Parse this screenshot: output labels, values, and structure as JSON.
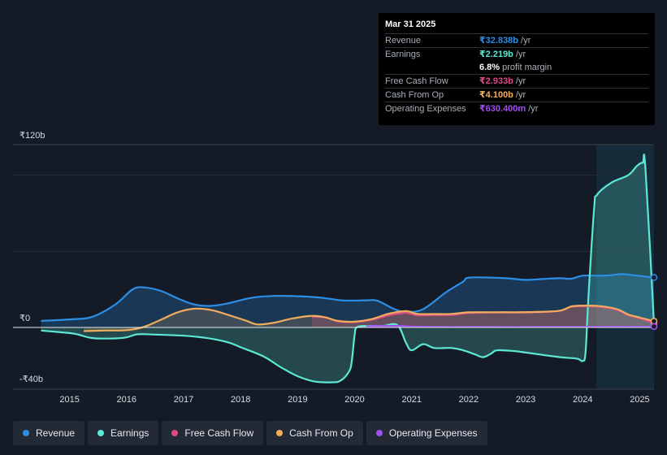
{
  "tooltip": {
    "date": "Mar 31 2025",
    "rows": [
      {
        "label": "Revenue",
        "value": "₹32.838b",
        "unit": "/yr",
        "color": "#2d8ee6"
      },
      {
        "label": "Earnings",
        "value": "₹2.219b",
        "unit": "/yr",
        "color": "#5ce8d3"
      },
      {
        "label": "",
        "value": "6.8%",
        "unit": "profit margin",
        "color": "#ffffff"
      },
      {
        "label": "Free Cash Flow",
        "value": "₹2.933b",
        "unit": "/yr",
        "color": "#e24a86"
      },
      {
        "label": "Cash From Op",
        "value": "₹4.100b",
        "unit": "/yr",
        "color": "#f1ad5c"
      },
      {
        "label": "Operating Expenses",
        "value": "₹630.400m",
        "unit": "/yr",
        "color": "#a04eec"
      }
    ]
  },
  "legend": [
    {
      "label": "Revenue",
      "color": "#2d8ee6"
    },
    {
      "label": "Earnings",
      "color": "#5ce8d3"
    },
    {
      "label": "Free Cash Flow",
      "color": "#e24a86"
    },
    {
      "label": "Cash From Op",
      "color": "#f1ad5c"
    },
    {
      "label": "Operating Expenses",
      "color": "#a04eec"
    }
  ],
  "chart_data": {
    "type": "area",
    "y_unit": "₹ billions",
    "y_top_label": "₹120b",
    "y_zero_label": "₹0",
    "y_bottom_label": "-₹40b",
    "ylim": [
      -40,
      120
    ],
    "xlim": [
      2014.45,
      2025.25
    ],
    "x_ticks": [
      "2015",
      "2016",
      "2017",
      "2018",
      "2019",
      "2020",
      "2021",
      "2022",
      "2023",
      "2024",
      "2025"
    ],
    "x_tick_values": [
      2015,
      2016,
      2017,
      2018,
      2019,
      2020,
      2021,
      2022,
      2023,
      2024,
      2025
    ],
    "highlight_from": 2024.25,
    "series": [
      {
        "name": "Revenue",
        "color": "#2d8ee6",
        "points": [
          [
            2014.5,
            4.3
          ],
          [
            2015,
            5.3
          ],
          [
            2015.4,
            7
          ],
          [
            2015.8,
            15
          ],
          [
            2016.1,
            24.8
          ],
          [
            2016.3,
            26.3
          ],
          [
            2016.6,
            24
          ],
          [
            2016.9,
            19
          ],
          [
            2017.2,
            15
          ],
          [
            2017.5,
            14.2
          ],
          [
            2017.8,
            16
          ],
          [
            2018.2,
            19.5
          ],
          [
            2018.6,
            20.7
          ],
          [
            2019,
            20.5
          ],
          [
            2019.4,
            19.6
          ],
          [
            2019.8,
            17.7
          ],
          [
            2020.2,
            17.8
          ],
          [
            2020.4,
            17.5
          ],
          [
            2020.7,
            12
          ],
          [
            2020.9,
            10.3
          ],
          [
            2021.2,
            12
          ],
          [
            2021.6,
            23
          ],
          [
            2021.9,
            30
          ],
          [
            2022,
            32.7
          ],
          [
            2022.4,
            32.7
          ],
          [
            2022.7,
            32.2
          ],
          [
            2023,
            31.2
          ],
          [
            2023.3,
            31.8
          ],
          [
            2023.6,
            32.3
          ],
          [
            2023.8,
            32
          ],
          [
            2024,
            34
          ],
          [
            2024.3,
            34
          ],
          [
            2024.5,
            34.3
          ],
          [
            2024.7,
            35
          ],
          [
            2025,
            33.8
          ],
          [
            2025.25,
            32.8
          ]
        ]
      },
      {
        "name": "Earnings",
        "color": "#5ce8d3",
        "points": [
          [
            2014.5,
            -2
          ],
          [
            2014.8,
            -3
          ],
          [
            2015.1,
            -4.2
          ],
          [
            2015.4,
            -7
          ],
          [
            2015.8,
            -7.2
          ],
          [
            2016,
            -6.5
          ],
          [
            2016.2,
            -4.5
          ],
          [
            2016.5,
            -4.7
          ],
          [
            2016.9,
            -5.2
          ],
          [
            2017.2,
            -6
          ],
          [
            2017.5,
            -7.5
          ],
          [
            2017.8,
            -10
          ],
          [
            2018,
            -13
          ],
          [
            2018.4,
            -19
          ],
          [
            2018.7,
            -26
          ],
          [
            2019,
            -32
          ],
          [
            2019.3,
            -35.5
          ],
          [
            2019.6,
            -36
          ],
          [
            2019.75,
            -35
          ],
          [
            2019.9,
            -29
          ],
          [
            2019.95,
            -22
          ],
          [
            2020,
            -5
          ],
          [
            2020.05,
            0.3
          ],
          [
            2020.3,
            1
          ],
          [
            2020.5,
            1
          ],
          [
            2020.75,
            1.5
          ],
          [
            2020.9,
            -10
          ],
          [
            2021,
            -15
          ],
          [
            2021.2,
            -11
          ],
          [
            2021.4,
            -13.5
          ],
          [
            2021.7,
            -13.5
          ],
          [
            2021.9,
            -15
          ],
          [
            2022.1,
            -17.5
          ],
          [
            2022.25,
            -19.5
          ],
          [
            2022.4,
            -17
          ],
          [
            2022.5,
            -15
          ],
          [
            2022.8,
            -15.5
          ],
          [
            2023,
            -16.5
          ],
          [
            2023.3,
            -18
          ],
          [
            2023.6,
            -19.5
          ],
          [
            2023.9,
            -20.5
          ],
          [
            2024,
            -22
          ],
          [
            2024.05,
            -16
          ],
          [
            2024.1,
            20
          ],
          [
            2024.2,
            78
          ],
          [
            2024.25,
            87
          ],
          [
            2024.5,
            95
          ],
          [
            2024.8,
            100
          ],
          [
            2024.95,
            106
          ],
          [
            2025.05,
            108
          ],
          [
            2025.1,
            104
          ],
          [
            2025.25,
            2.2
          ]
        ]
      },
      {
        "name": "Free Cash Flow",
        "color": "#e24a86",
        "points": [
          [
            2019.25,
            7
          ],
          [
            2019.5,
            6.5
          ],
          [
            2019.7,
            4
          ],
          [
            2020,
            3.5
          ],
          [
            2020.3,
            5
          ],
          [
            2020.6,
            8
          ],
          [
            2020.9,
            9.5
          ],
          [
            2021.1,
            8
          ],
          [
            2021.4,
            8.2
          ],
          [
            2021.7,
            8.2
          ],
          [
            2022,
            9.5
          ],
          [
            2022.4,
            9.8
          ],
          [
            2022.8,
            9.8
          ],
          [
            2023.2,
            10
          ],
          [
            2023.6,
            11
          ],
          [
            2023.8,
            13.5
          ],
          [
            2024,
            14
          ],
          [
            2024.3,
            13.5
          ],
          [
            2024.6,
            11.5
          ],
          [
            2024.8,
            8
          ],
          [
            2025,
            6
          ],
          [
            2025.25,
            2.9
          ]
        ]
      },
      {
        "name": "Cash From Op",
        "color": "#f1ad5c",
        "points": [
          [
            2015.25,
            -2.4
          ],
          [
            2015.6,
            -2
          ],
          [
            2016,
            -1.8
          ],
          [
            2016.3,
            0.3
          ],
          [
            2016.6,
            5
          ],
          [
            2016.9,
            10
          ],
          [
            2017.2,
            12.3
          ],
          [
            2017.5,
            11.3
          ],
          [
            2017.8,
            8
          ],
          [
            2018.1,
            4.4
          ],
          [
            2018.3,
            2
          ],
          [
            2018.6,
            3.2
          ],
          [
            2018.9,
            5.8
          ],
          [
            2019.25,
            7.6
          ],
          [
            2019.5,
            6.5
          ],
          [
            2019.7,
            4.3
          ],
          [
            2020,
            3.8
          ],
          [
            2020.3,
            5.5
          ],
          [
            2020.6,
            9
          ],
          [
            2020.9,
            10.7
          ],
          [
            2021.1,
            8.9
          ],
          [
            2021.4,
            8.8
          ],
          [
            2021.7,
            8.9
          ],
          [
            2022,
            9.9
          ],
          [
            2022.4,
            10
          ],
          [
            2022.8,
            10
          ],
          [
            2023.2,
            10.2
          ],
          [
            2023.6,
            11
          ],
          [
            2023.8,
            13.8
          ],
          [
            2024,
            14.3
          ],
          [
            2024.3,
            14
          ],
          [
            2024.6,
            12
          ],
          [
            2024.8,
            8.5
          ],
          [
            2025,
            6.5
          ],
          [
            2025.25,
            4.1
          ]
        ]
      },
      {
        "name": "Operating Expenses",
        "color": "#a04eec",
        "points": [
          [
            2020.2,
            0.8
          ],
          [
            2020.8,
            1
          ],
          [
            2021,
            0.6
          ],
          [
            2021.5,
            0.3
          ],
          [
            2022,
            0.3
          ],
          [
            2023,
            0.3
          ],
          [
            2024,
            0.4
          ],
          [
            2025,
            0.5
          ],
          [
            2025.25,
            0.63
          ]
        ]
      }
    ]
  }
}
